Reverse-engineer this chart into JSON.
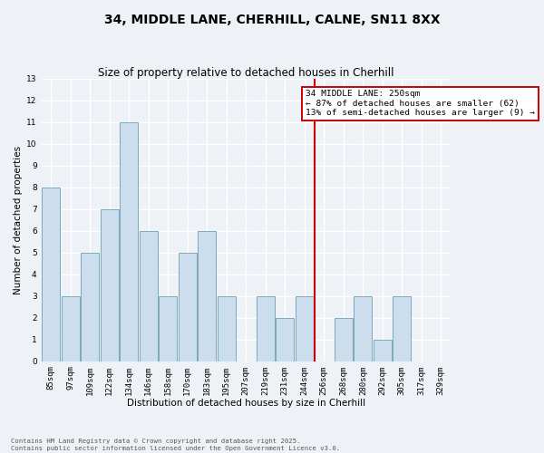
{
  "title": "34, MIDDLE LANE, CHERHILL, CALNE, SN11 8XX",
  "subtitle": "Size of property relative to detached houses in Cherhill",
  "xlabel": "Distribution of detached houses by size in Cherhill",
  "ylabel": "Number of detached properties",
  "bin_labels": [
    "85sqm",
    "97sqm",
    "109sqm",
    "122sqm",
    "134sqm",
    "146sqm",
    "158sqm",
    "170sqm",
    "183sqm",
    "195sqm",
    "207sqm",
    "219sqm",
    "231sqm",
    "244sqm",
    "256sqm",
    "268sqm",
    "280sqm",
    "292sqm",
    "305sqm",
    "317sqm",
    "329sqm"
  ],
  "bar_heights": [
    8,
    3,
    5,
    7,
    11,
    6,
    3,
    5,
    6,
    3,
    0,
    3,
    2,
    3,
    0,
    2,
    3,
    1,
    3,
    0,
    0
  ],
  "bar_color": "#ccdded",
  "bar_edge_color": "#7aaabb",
  "vline_color": "#cc0000",
  "annotation_title": "34 MIDDLE LANE: 250sqm",
  "annotation_line1": "← 87% of detached houses are smaller (62)",
  "annotation_line2": "13% of semi-detached houses are larger (9) →",
  "annotation_box_color": "#ffffff",
  "annotation_box_edge_color": "#cc0000",
  "ylim": [
    0,
    13
  ],
  "yticks": [
    0,
    1,
    2,
    3,
    4,
    5,
    6,
    7,
    8,
    9,
    10,
    11,
    12,
    13
  ],
  "footer1": "Contains HM Land Registry data © Crown copyright and database right 2025.",
  "footer2": "Contains public sector information licensed under the Open Government Licence v3.0.",
  "background_color": "#eef2f7",
  "grid_color": "#ffffff",
  "title_fontsize": 10,
  "subtitle_fontsize": 8.5,
  "axis_label_fontsize": 7.5,
  "tick_fontsize": 6.5,
  "annotation_fontsize": 6.8,
  "footer_fontsize": 5.2
}
